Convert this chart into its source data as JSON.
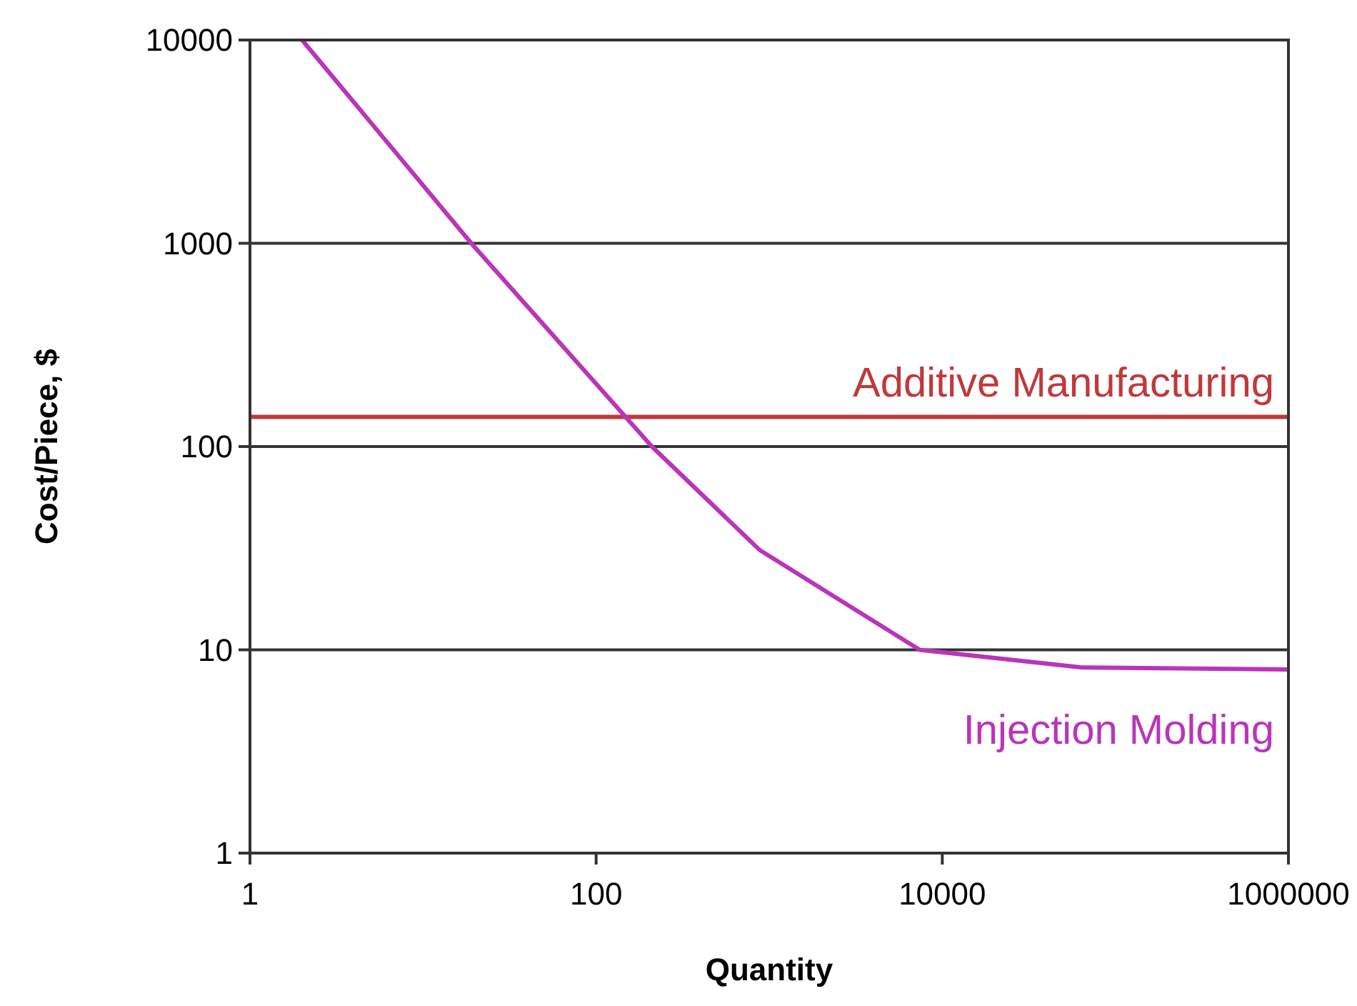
{
  "chart_data": {
    "type": "line",
    "xlabel": "Quantity",
    "ylabel": "Cost/Piece, $",
    "log": "xy",
    "grid": "y",
    "xlim": [
      1,
      1000000
    ],
    "xticks": [
      1,
      100,
      10000,
      1000000
    ],
    "ylim": [
      1,
      10000
    ],
    "yticks": [
      1,
      10,
      100,
      1000,
      10000
    ],
    "series": [
      {
        "name": "Additive Manufacturing",
        "color": "#c0393b",
        "x": [
          1,
          1000000
        ],
        "values": [
          140,
          140
        ]
      },
      {
        "name": "Injection Molding",
        "color": "#b935b9",
        "x": [
          2,
          19,
          210,
          880,
          7400,
          63000,
          1000000
        ],
        "values": [
          10000,
          1000,
          100,
          31,
          10,
          8.2,
          8
        ]
      }
    ]
  }
}
